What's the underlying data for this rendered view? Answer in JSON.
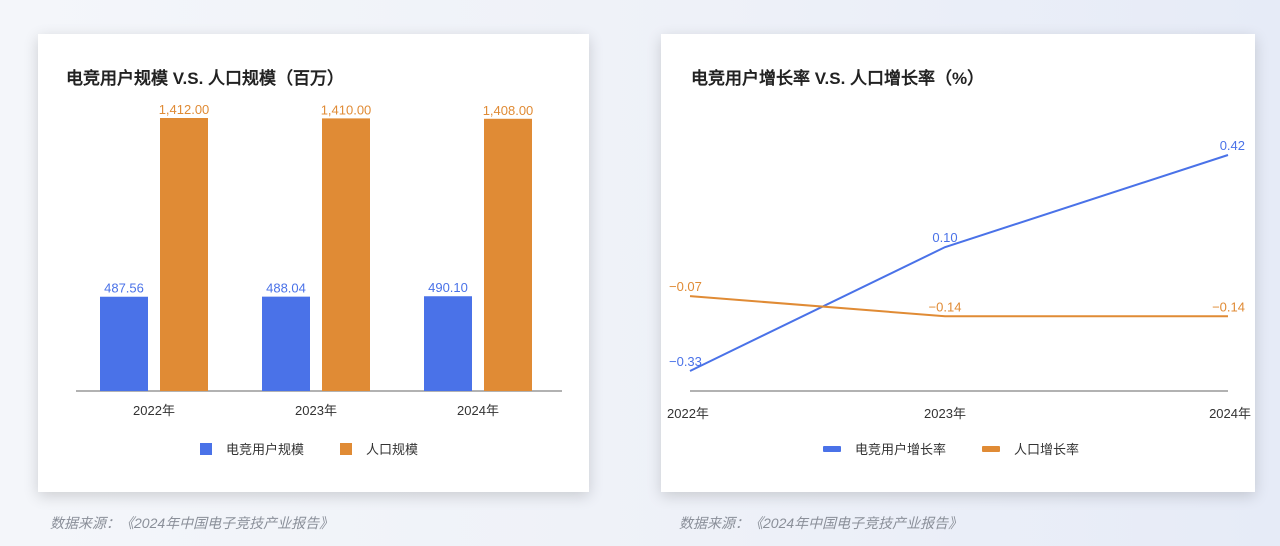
{
  "source_note": "数据来源：《2024年中国电子竞技产业报告》",
  "colors": {
    "blue": "#4a72e8",
    "orange": "#e08b35"
  },
  "chart_data": [
    {
      "type": "bar",
      "title": "电竞用户规模 V.S. 人口规模（百万）",
      "categories": [
        "2022年",
        "2023年",
        "2024年"
      ],
      "series": [
        {
          "name": "电竞用户规模",
          "values": [
            487.56,
            488.04,
            490.1
          ],
          "labels": [
            "487.56",
            "488.04",
            "490.10"
          ]
        },
        {
          "name": "人口规模",
          "values": [
            1412.0,
            1410.0,
            1408.0
          ],
          "labels": [
            "1,412.00",
            "1,410.00",
            "1,408.00"
          ]
        }
      ],
      "ylim": [
        0,
        1412
      ],
      "grid": false,
      "legend": "bottom"
    },
    {
      "type": "line",
      "title": "电竞用户增长率 V.S. 人口增长率（%）",
      "categories": [
        "2022年",
        "2023年",
        "2024年"
      ],
      "series": [
        {
          "name": "电竞用户增长率",
          "values": [
            -0.33,
            0.1,
            0.42
          ],
          "labels": [
            "−0.33",
            "0.10",
            "0.42"
          ]
        },
        {
          "name": "人口增长率",
          "values": [
            -0.07,
            -0.14,
            -0.14
          ],
          "labels": [
            "−0.07",
            "−0.14",
            "−0.14"
          ]
        }
      ],
      "ylim": [
        -0.33,
        0.42
      ],
      "grid": false,
      "legend": "bottom"
    }
  ]
}
